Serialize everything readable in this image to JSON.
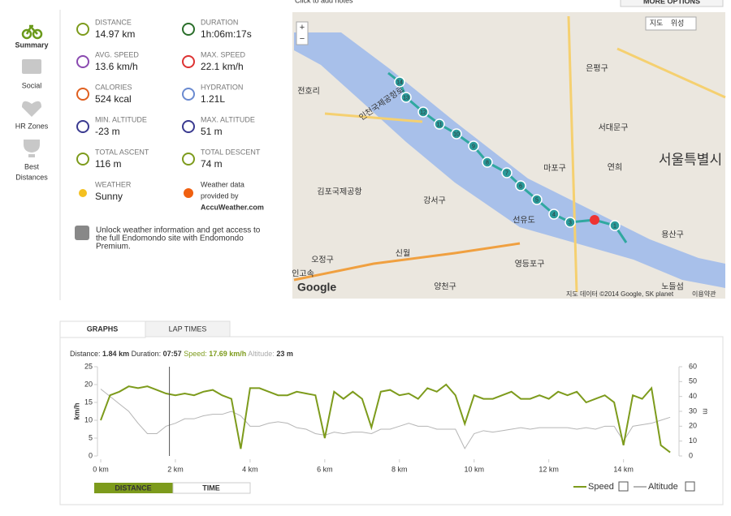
{
  "top": {
    "notes": "Click to add notes",
    "options": "MORE OPTIONS"
  },
  "sidebar": [
    "Summary",
    "Social",
    "HR Zones",
    "Best",
    "Distances"
  ],
  "stats": [
    {
      "label": "DISTANCE",
      "value": "14.97 km"
    },
    {
      "label": "DURATION",
      "value": "1h:06m:17s"
    },
    {
      "label": "AVG. SPEED",
      "value": "13.6 km/h"
    },
    {
      "label": "MAX. SPEED",
      "value": "22.1 km/h"
    },
    {
      "label": "CALORIES",
      "value": "524 kcal"
    },
    {
      "label": "HYDRATION",
      "value": "1.21L"
    },
    {
      "label": "MIN. ALTITUDE",
      "value": "-23 m"
    },
    {
      "label": "MAX. ALTITUDE",
      "value": "51 m"
    },
    {
      "label": "TOTAL ASCENT",
      "value": "116 m"
    },
    {
      "label": "TOTAL DESCENT",
      "value": "74 m"
    }
  ],
  "weather": {
    "label": "WEATHER",
    "value": "Sunny",
    "provider": [
      "Weather data",
      "provided by",
      "AccuWeather.com"
    ]
  },
  "promo": [
    "Unlock weather information and get access to",
    "the full Endomondo site with Endomondo",
    "Premium."
  ],
  "map": {
    "buttons": [
      "지도",
      "위성"
    ],
    "zoom": [
      "+",
      "−"
    ],
    "labels": [
      "은평구",
      "서대문구",
      "연희",
      "마포구",
      "서울특별시",
      "강서구",
      "김포국제공항",
      "선유도",
      "신월",
      "영등포구",
      "오정구",
      "양천구",
      "용산구",
      "전호리",
      "인천국제공항로",
      "인고속",
      "노들섬"
    ],
    "markers": [
      "1",
      "3",
      "4",
      "5",
      "6",
      "7",
      "8",
      "9",
      "10",
      "11",
      "12",
      "13",
      "14"
    ],
    "logo": "Google",
    "attribution": "지도 데이터 ©2014 Google, SK planet",
    "terms": "이용약관"
  },
  "tabs": [
    "GRAPHS",
    "LAP TIMES"
  ],
  "readout": [
    "Distance:",
    "1.84 km",
    "Duration:",
    "07:57",
    "Speed:",
    "17.69 km/h",
    "Altitude:",
    "23 m"
  ],
  "chart_data": {
    "type": "line",
    "ylabel": "km/h",
    "y2label": "m",
    "x": [
      0,
      0.25,
      0.5,
      0.75,
      1,
      1.25,
      1.5,
      1.75,
      2,
      2.25,
      2.5,
      2.75,
      3,
      3.25,
      3.5,
      3.75,
      4,
      4.25,
      4.5,
      4.75,
      5,
      5.25,
      5.5,
      5.75,
      6,
      6.25,
      6.5,
      6.75,
      7,
      7.25,
      7.5,
      7.75,
      8,
      8.25,
      8.5,
      8.75,
      9,
      9.25,
      9.5,
      9.75,
      10,
      10.25,
      10.5,
      10.75,
      11,
      11.25,
      11.5,
      11.75,
      12,
      12.25,
      12.5,
      12.75,
      13,
      13.25,
      13.5,
      13.75,
      14,
      14.25,
      14.5,
      14.75,
      15,
      15.25
    ],
    "series": [
      {
        "name": "Speed",
        "color": "#7d9b1c",
        "values": [
          10,
          17,
          18,
          19.5,
          19,
          19.5,
          18.5,
          17.5,
          17,
          17.5,
          17,
          18,
          18.5,
          17,
          16,
          2,
          19,
          19,
          18,
          17,
          17,
          18,
          17.5,
          17,
          5,
          18,
          16,
          18,
          16,
          8,
          18,
          18.5,
          17,
          17.5,
          16,
          19,
          18,
          20,
          17,
          9,
          17,
          16,
          16,
          17,
          18,
          16,
          16,
          17,
          16,
          18,
          17,
          18,
          15,
          16,
          17,
          15,
          3,
          17,
          16,
          19,
          3,
          1
        ]
      },
      {
        "name": "Altitude",
        "color": "#b5b5b5",
        "axis": "y2",
        "values": [
          45,
          40,
          35,
          30,
          22,
          15,
          15,
          20,
          22,
          25,
          25,
          27,
          28,
          28,
          30,
          27,
          20,
          20,
          22,
          23,
          22,
          19,
          18,
          15,
          14,
          16,
          15,
          16,
          16,
          15,
          18,
          18,
          20,
          22,
          20,
          20,
          18,
          18,
          18,
          5,
          15,
          17,
          16,
          17,
          18,
          19,
          18,
          19,
          19,
          19,
          19,
          18,
          19,
          18,
          20,
          20,
          10,
          20,
          21,
          22,
          24,
          26
        ]
      }
    ],
    "xlim": [
      0,
      15.4
    ],
    "ylim": [
      0,
      25
    ],
    "y2lim": [
      0,
      60
    ],
    "xticks": [
      {
        "value": 0,
        "label": "0 km"
      },
      {
        "value": 2,
        "label": "2 km"
      },
      {
        "value": 4,
        "label": "4 km"
      },
      {
        "value": 6,
        "label": "6 km"
      },
      {
        "value": 8,
        "label": "8 km"
      },
      {
        "value": 10,
        "label": "10 km"
      },
      {
        "value": 12,
        "label": "12 km"
      },
      {
        "value": 14,
        "label": "14 km"
      }
    ],
    "yticks": [
      0,
      5,
      10,
      15,
      20,
      25
    ],
    "y2ticks": [
      0,
      10,
      20,
      30,
      40,
      50,
      60
    ],
    "marker_x": 1.84
  },
  "toggle": [
    "DISTANCE",
    "TIME"
  ]
}
